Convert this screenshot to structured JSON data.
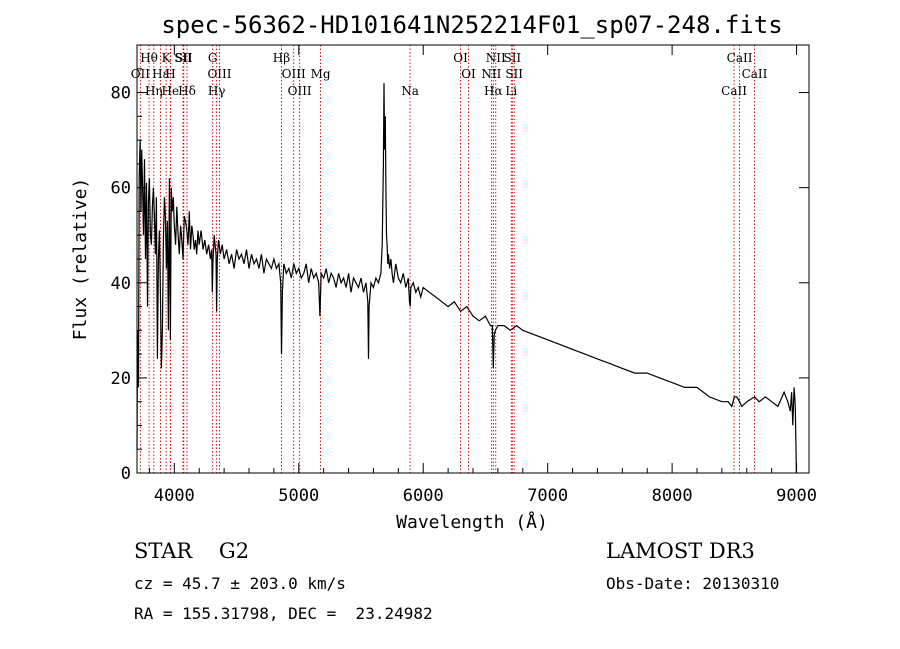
{
  "chart_data": {
    "type": "line",
    "title": "spec-56362-HD101641N252214F01_sp07-248.fits",
    "xlabel": "Wavelength (Å)",
    "ylabel": "Flux (relative)",
    "xlim": [
      3700,
      9100
    ],
    "ylim": [
      0,
      90
    ],
    "xticks": [
      4000,
      5000,
      6000,
      7000,
      8000,
      9000
    ],
    "yticks": [
      0,
      20,
      40,
      60,
      80
    ],
    "xtick_labels": [
      "4000",
      "5000",
      "6000",
      "7000",
      "8000",
      "9000"
    ],
    "ytick_labels": [
      "0",
      "20",
      "40",
      "60",
      "80"
    ],
    "series": [
      {
        "name": "flux",
        "x": [
          3700,
          3705,
          3712,
          3718,
          3725,
          3732,
          3738,
          3745,
          3752,
          3760,
          3768,
          3776,
          3784,
          3792,
          3800,
          3808,
          3816,
          3824,
          3832,
          3840,
          3848,
          3856,
          3864,
          3872,
          3880,
          3888,
          3896,
          3904,
          3912,
          3920,
          3928,
          3936,
          3944,
          3952,
          3960,
          3968,
          3976,
          3984,
          3992,
          4000,
          4010,
          4020,
          4030,
          4040,
          4050,
          4060,
          4070,
          4080,
          4090,
          4100,
          4110,
          4120,
          4130,
          4140,
          4150,
          4160,
          4170,
          4180,
          4190,
          4200,
          4215,
          4230,
          4245,
          4260,
          4275,
          4290,
          4300,
          4305,
          4310,
          4320,
          4335,
          4340,
          4345,
          4355,
          4370,
          4385,
          4400,
          4420,
          4440,
          4460,
          4480,
          4500,
          4520,
          4540,
          4560,
          4580,
          4600,
          4620,
          4640,
          4660,
          4680,
          4700,
          4720,
          4740,
          4760,
          4780,
          4800,
          4820,
          4840,
          4855,
          4861,
          4868,
          4880,
          4900,
          4920,
          4940,
          4960,
          4980,
          5000,
          5020,
          5040,
          5060,
          5080,
          5100,
          5120,
          5140,
          5160,
          5170,
          5175,
          5180,
          5200,
          5220,
          5240,
          5260,
          5280,
          5300,
          5320,
          5340,
          5360,
          5380,
          5400,
          5420,
          5440,
          5460,
          5480,
          5500,
          5520,
          5540,
          5555,
          5560,
          5565,
          5580,
          5600,
          5620,
          5640,
          5660,
          5670,
          5680,
          5685,
          5690,
          5695,
          5700,
          5705,
          5710,
          5715,
          5720,
          5730,
          5740,
          5750,
          5760,
          5780,
          5800,
          5820,
          5840,
          5860,
          5880,
          5890,
          5895,
          5900,
          5920,
          5940,
          5960,
          5980,
          6000,
          6050,
          6100,
          6150,
          6200,
          6250,
          6300,
          6350,
          6400,
          6450,
          6500,
          6540,
          6555,
          6563,
          6570,
          6580,
          6600,
          6650,
          6700,
          6750,
          6800,
          6900,
          7000,
          7100,
          7200,
          7300,
          7400,
          7500,
          7600,
          7700,
          7800,
          7900,
          8000,
          8100,
          8200,
          8300,
          8400,
          8450,
          8480,
          8500,
          8520,
          8542,
          8560,
          8600,
          8662,
          8700,
          8750,
          8800,
          8850,
          8900,
          8930,
          8950,
          8960,
          8970,
          8980,
          8990,
          8999
        ],
        "values": [
          5,
          30,
          18,
          62,
          70,
          55,
          68,
          60,
          50,
          66,
          45,
          61,
          35,
          57,
          62,
          50,
          48,
          56,
          60,
          54,
          46,
          58,
          24,
          45,
          51,
          38,
          22,
          30,
          49,
          58,
          54,
          43,
          53,
          30,
          62,
          28,
          60,
          55,
          58,
          52,
          48,
          56,
          50,
          46,
          52,
          49,
          45,
          54,
          53,
          51,
          48,
          55,
          47,
          52,
          50,
          47,
          49,
          46,
          51,
          48,
          51,
          47,
          49,
          46,
          48,
          45,
          47,
          38,
          44,
          50,
          46,
          34,
          45,
          49,
          46,
          48,
          45,
          47,
          44,
          46,
          43,
          47,
          45,
          46,
          44,
          47,
          43,
          46,
          44,
          45,
          43,
          46,
          42,
          45,
          44,
          43,
          45,
          43,
          44,
          40,
          25,
          38,
          44,
          42,
          43,
          41,
          44,
          42,
          43,
          41,
          42,
          44,
          40,
          43,
          41,
          42,
          40,
          33,
          38,
          42,
          41,
          43,
          40,
          42,
          41,
          39,
          42,
          40,
          41,
          39,
          42,
          38,
          41,
          40,
          39,
          41,
          38,
          40,
          36,
          24,
          35,
          40,
          39,
          41,
          40,
          42,
          48,
          65,
          82,
          68,
          75,
          60,
          50,
          48,
          44,
          46,
          43,
          45,
          42,
          40,
          44,
          41,
          40,
          42,
          39,
          41,
          36,
          35,
          39,
          40,
          38,
          39,
          37,
          39,
          38,
          37,
          36,
          35,
          36,
          34,
          35,
          33,
          32,
          33,
          31,
          31,
          22,
          29,
          30,
          31,
          31,
          30,
          31,
          30,
          29,
          28,
          27,
          26,
          25,
          24,
          23,
          22,
          21,
          21,
          20,
          19,
          18,
          18,
          16,
          15,
          15,
          14,
          16,
          16,
          15,
          14,
          15,
          16,
          15,
          16,
          15,
          14,
          17,
          15,
          13,
          17,
          10,
          18,
          14,
          0
        ]
      }
    ],
    "lines": [
      {
        "label": "Hθ",
        "x": 3797
      },
      {
        "label": "OII",
        "x": 3727
      },
      {
        "label": "Hε",
        "x": 3889
      },
      {
        "label": "He",
        "x": 3968
      },
      {
        "label": "Hη",
        "x": 3835
      },
      {
        "label": "K",
        "x": 3934
      },
      {
        "label": "SII",
        "x": 4070
      },
      {
        "label": "H",
        "x": 3969
      },
      {
        "label": "Hδ",
        "x": 4102
      },
      {
        "label": "SII",
        "x": 4076
      },
      {
        "label": "OIII",
        "x": 4363
      },
      {
        "label": "Hγ",
        "x": 4340
      },
      {
        "label": "G",
        "x": 4308
      },
      {
        "label": "OIII",
        "x": 4959
      },
      {
        "label": "OIII",
        "x": 5007
      },
      {
        "label": "Hβ",
        "x": 4861
      },
      {
        "label": "Mg",
        "x": 5175
      },
      {
        "label": "Na",
        "x": 5894
      },
      {
        "label": "OI",
        "x": 6300
      },
      {
        "label": "OI",
        "x": 6364
      },
      {
        "label": "Hα",
        "x": 6563
      },
      {
        "label": "SII",
        "x": 6716
      },
      {
        "label": "NII",
        "x": 6548
      },
      {
        "label": "Li",
        "x": 6708
      },
      {
        "label": "NII",
        "x": 6583
      },
      {
        "label": "SII",
        "x": 6731
      },
      {
        "label": "CaII",
        "x": 8498
      },
      {
        "label": "CaII",
        "x": 8542
      },
      {
        "label": "CaII",
        "x": 8662
      }
    ],
    "line_color": "#cc0000",
    "flux_color": "#000000"
  },
  "info": {
    "object_class": "STAR    G2",
    "source": "LAMOST DR3",
    "redshift": "cz = 45.7 ± 203.0 km/s",
    "obs_date": "Obs-Date: 20130310",
    "radec": "RA = 155.31798, DEC =  23.24982"
  }
}
